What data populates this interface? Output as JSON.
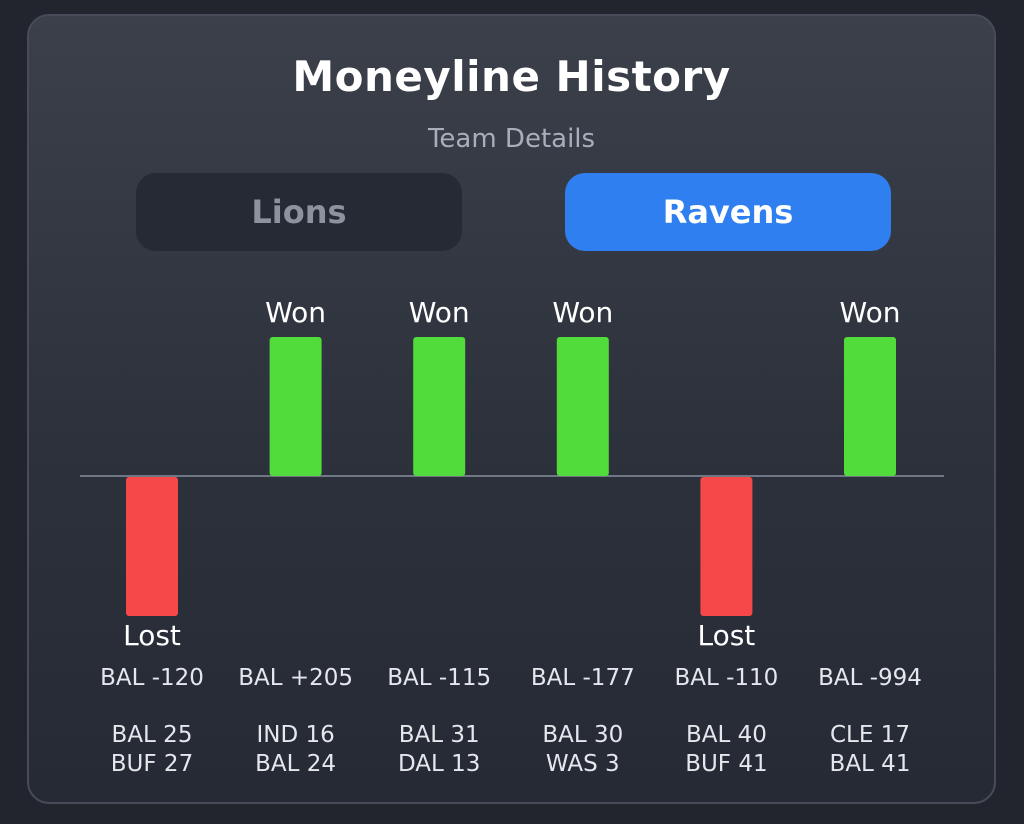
{
  "header": {
    "title": "Moneyline History",
    "subtitle": "Team Details"
  },
  "tabs": [
    {
      "label": "Lions",
      "active": false
    },
    {
      "label": "Ravens",
      "active": true
    }
  ],
  "colors": {
    "won": "#52dc3b",
    "lost": "#f64848",
    "active_tab": "#2f7ff0",
    "baseline": "#6f7684"
  },
  "chart_data": {
    "type": "bar",
    "categories": [
      "BAL -120",
      "BAL +205",
      "BAL -115",
      "BAL -177",
      "BAL -110",
      "BAL -994"
    ],
    "values": [
      -1,
      1,
      1,
      1,
      -1,
      1
    ],
    "results": [
      "Lost",
      "Won",
      "Won",
      "Won",
      "Lost",
      "Won"
    ],
    "scores": [
      [
        "BAL 25",
        "BUF 27"
      ],
      [
        "IND 16",
        "BAL 24"
      ],
      [
        "BAL 31",
        "DAL 13"
      ],
      [
        "BAL 30",
        "WAS 3"
      ],
      [
        "BAL 40",
        "BUF 41"
      ],
      [
        "CLE 17",
        "BAL 41"
      ]
    ],
    "ylim": [
      -1,
      1
    ],
    "grid": false
  }
}
